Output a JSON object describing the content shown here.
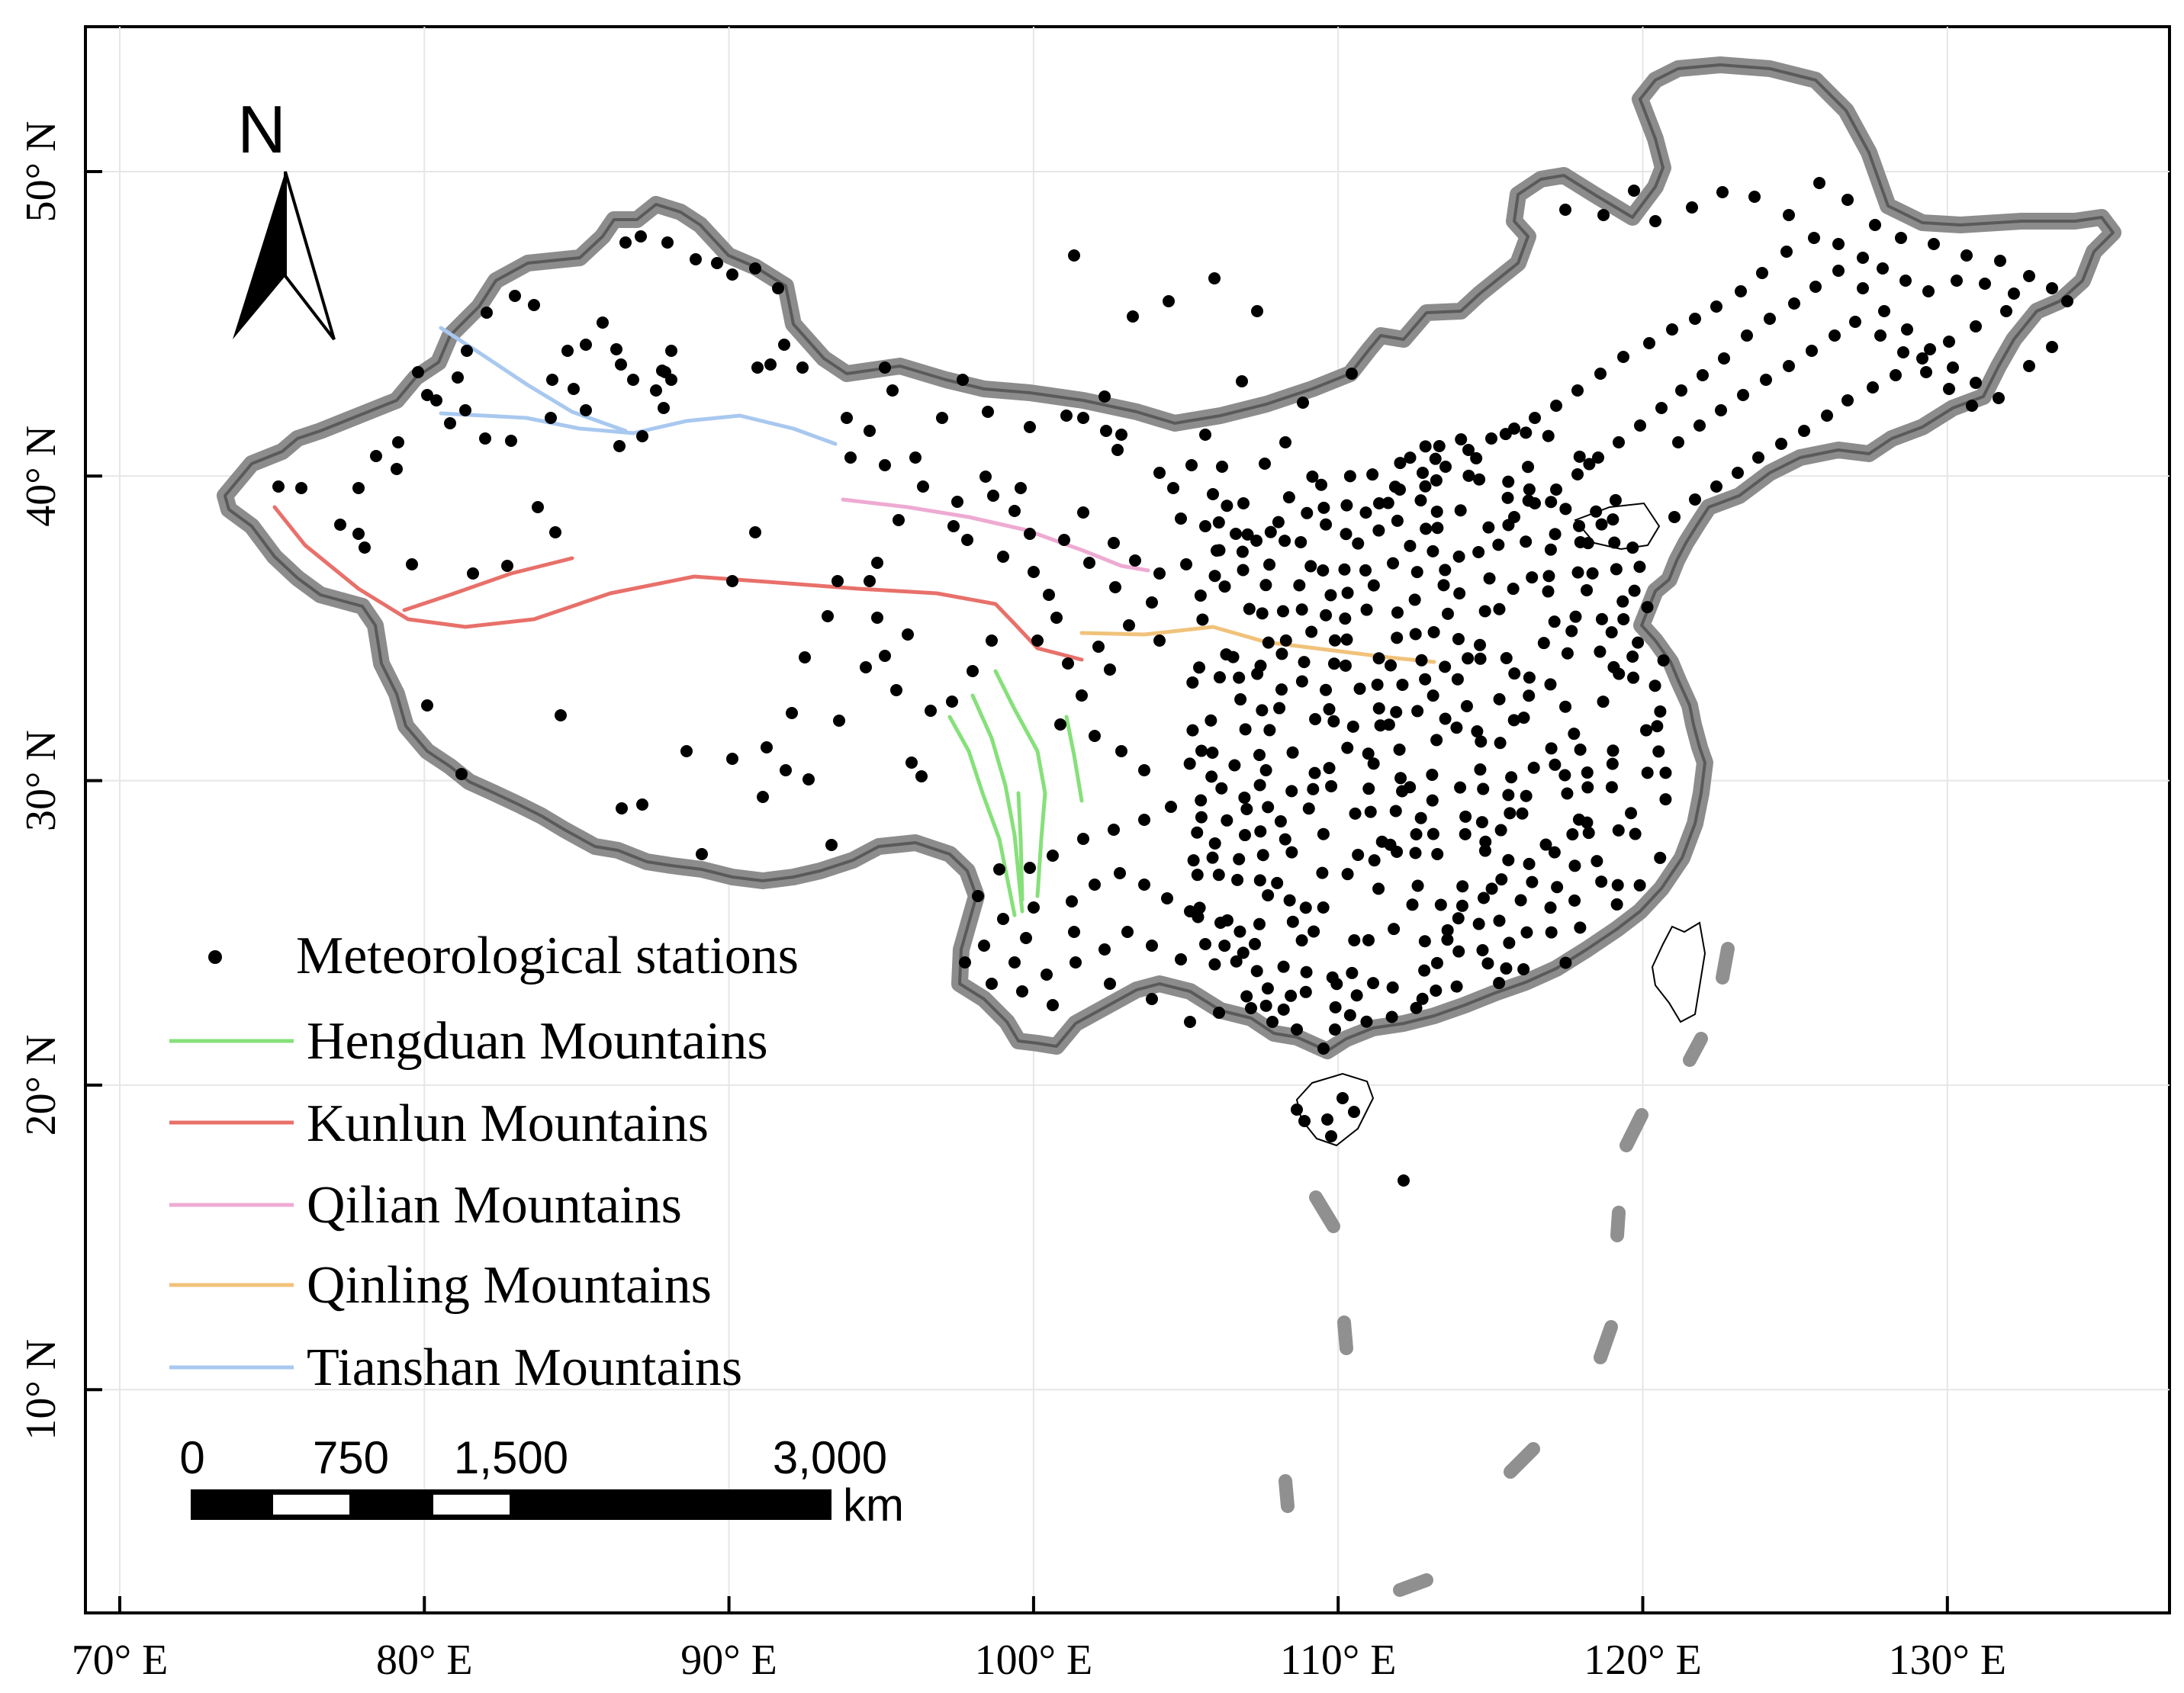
{
  "x_axis": {
    "ticks": [
      {
        "lon": 70,
        "label": "70° E"
      },
      {
        "lon": 80,
        "label": "80° E"
      },
      {
        "lon": 90,
        "label": "90° E"
      },
      {
        "lon": 100,
        "label": "100° E"
      },
      {
        "lon": 110,
        "label": "110° E"
      },
      {
        "lon": 120,
        "label": "120° E"
      },
      {
        "lon": 130,
        "label": "130° E"
      }
    ]
  },
  "y_axis": {
    "ticks": [
      {
        "lat": 50,
        "label": "50° N"
      },
      {
        "lat": 40,
        "label": "40° N"
      },
      {
        "lat": 30,
        "label": "30° N"
      },
      {
        "lat": 20,
        "label": "20° N"
      },
      {
        "lat": 10,
        "label": "10° N"
      }
    ]
  },
  "north_arrow": {
    "label": "N"
  },
  "legend": {
    "stations_label": "Meteorological stations",
    "mountains": [
      {
        "id": "hengduan",
        "label": "Hengduan Mountains",
        "color": "#86e07a"
      },
      {
        "id": "kunlun",
        "label": "Kunlun Mountains",
        "color": "#e8706a"
      },
      {
        "id": "qilian",
        "label": "Qilian Mountains",
        "color": "#eeaad2"
      },
      {
        "id": "qinling",
        "label": "Qinling Mountains",
        "color": "#f0c27a"
      },
      {
        "id": "tianshan",
        "label": "Tianshan Mountains",
        "color": "#a8c8ef"
      }
    ]
  },
  "scale_bar": {
    "labels": [
      "0",
      "750",
      "1,500",
      "3,000"
    ],
    "unit": "km"
  },
  "colors": {
    "boundary": "#8c8c8c",
    "station": "#000000",
    "grid": "#e6e6e6"
  }
}
